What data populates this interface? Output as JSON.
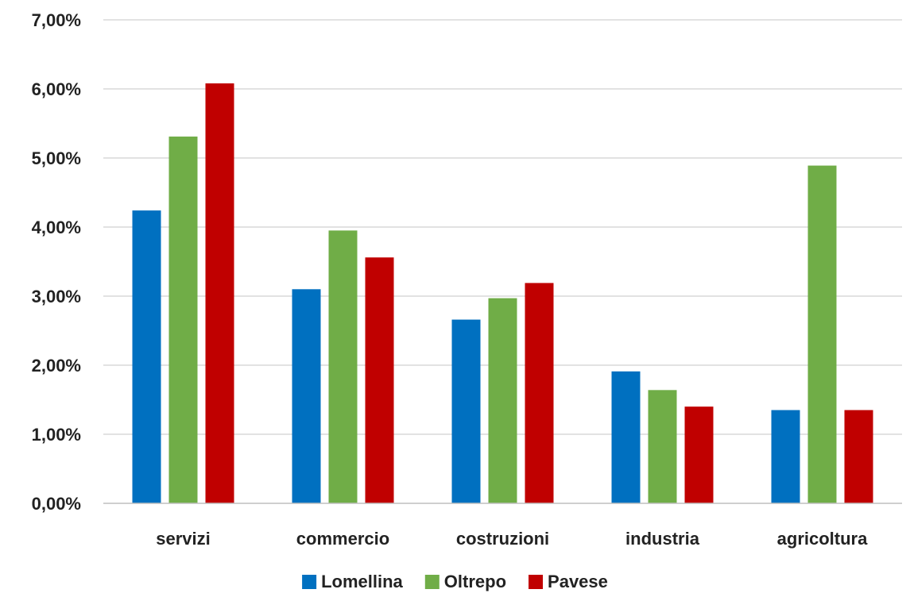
{
  "chart_data": {
    "type": "bar",
    "title": "",
    "xlabel": "",
    "ylabel": "",
    "categories": [
      "servizi",
      "commercio",
      "costruzioni",
      "industria",
      "agricoltura"
    ],
    "series": [
      {
        "name": "Lomellina",
        "color": "#0070C0",
        "values": [
          4.24,
          3.1,
          2.66,
          1.91,
          1.35
        ]
      },
      {
        "name": "Oltrepo",
        "color": "#70AD47",
        "values": [
          5.31,
          3.95,
          2.97,
          1.64,
          4.89
        ]
      },
      {
        "name": "Pavese",
        "color": "#C00000",
        "values": [
          6.08,
          3.56,
          3.19,
          1.4,
          1.35
        ]
      }
    ],
    "ylim": [
      0,
      7
    ],
    "y_ticks": [
      0,
      1,
      2,
      3,
      4,
      5,
      6,
      7
    ],
    "y_tick_labels": [
      "0,00%",
      "1,00%",
      "2,00%",
      "3,00%",
      "4,00%",
      "5,00%",
      "6,00%",
      "7,00%"
    ],
    "grid": true,
    "legend_position": "bottom"
  }
}
